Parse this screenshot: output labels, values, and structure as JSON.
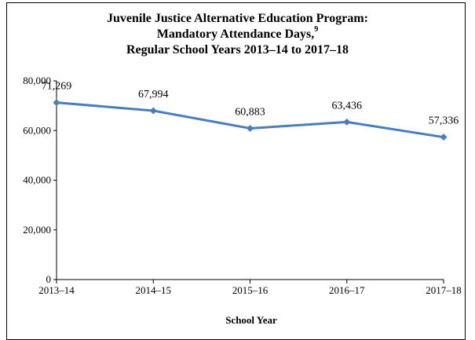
{
  "chart_data": {
    "type": "line",
    "title_lines": [
      "Juvenile Justice Alternative Education Program:",
      "Mandatory Attendance Days,",
      "Regular School Years 2013–14 to 2017–18"
    ],
    "title_superscript": "9",
    "xlabel": "School Year",
    "ylabel": "",
    "categories": [
      "2013–14",
      "2014–15",
      "2015–16",
      "2016–17",
      "2017–18"
    ],
    "series": [
      {
        "values": [
          71269,
          67994,
          60883,
          63436,
          57336
        ],
        "labels": [
          "71,269",
          "67,994",
          "60,883",
          "63,436",
          "57,336"
        ]
      }
    ],
    "ylim": [
      0,
      80000
    ],
    "yticks": [
      0,
      20000,
      40000,
      60000,
      80000
    ],
    "ytick_labels": [
      "0",
      "20,000",
      "40,000",
      "60,000",
      "80,000"
    ],
    "grid": false,
    "line_color": "#4a7ebb",
    "marker": "diamond"
  }
}
